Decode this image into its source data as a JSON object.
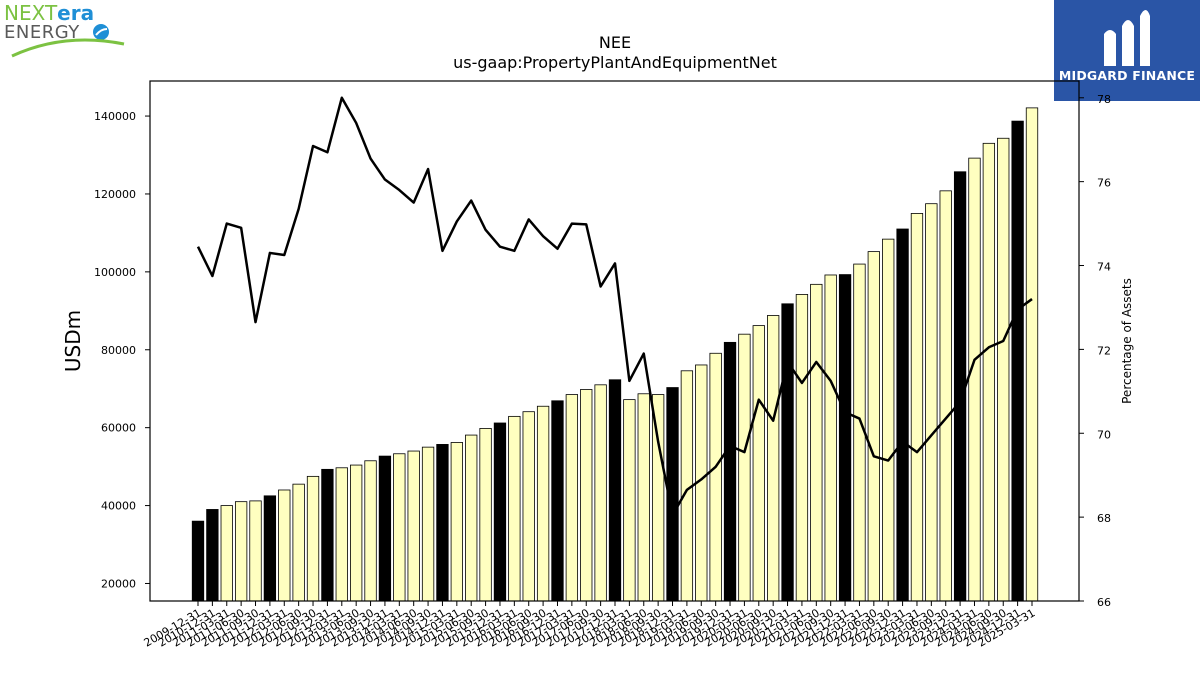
{
  "logos": {
    "left": {
      "word1": "NEXT",
      "word2": "era",
      "word3": "ENERGY",
      "colors": {
        "next": "#7cc242",
        "era": "#1f8fd6",
        "energy": "#5a5a5a",
        "swoosh": "#7cc242"
      }
    },
    "right": {
      "text": "MIDGARD FINANCE",
      "background": "#2a55a6"
    }
  },
  "chart_data": {
    "type": "bar",
    "title": "NEE",
    "subtitle": "us-gaap:PropertyPlantAndEquipmentNet",
    "ylabel": "USDm",
    "y2label": "Percentage of Assets",
    "ylim": [
      15500,
      149000
    ],
    "yticks": [
      20000,
      40000,
      60000,
      80000,
      100000,
      120000,
      140000
    ],
    "y2lim": [
      66,
      78.4
    ],
    "y2ticks": [
      66,
      68,
      70,
      72,
      74,
      76,
      78
    ],
    "colors": {
      "annual_bar": "#000000",
      "quarterly_bar": "#ffffc0",
      "bar_edge": "#000000",
      "line": "#000000"
    },
    "categories": [
      "2009-12-31",
      "2010-12-31",
      "2011-03-31",
      "2011-06-30",
      "2011-09-30",
      "2011-12-31",
      "2012-03-31",
      "2012-06-30",
      "2012-09-30",
      "2012-12-31",
      "2013-03-31",
      "2013-06-30",
      "2013-09-30",
      "2013-12-31",
      "2014-03-31",
      "2014-06-30",
      "2014-09-30",
      "2014-12-31",
      "2015-03-31",
      "2015-06-30",
      "2015-09-30",
      "2015-12-31",
      "2016-03-31",
      "2016-06-30",
      "2016-09-30",
      "2016-12-31",
      "2017-03-31",
      "2017-06-30",
      "2017-09-30",
      "2017-12-31",
      "2018-03-31",
      "2018-06-30",
      "2018-09-30",
      "2018-12-31",
      "2019-03-31",
      "2019-06-30",
      "2019-09-30",
      "2019-12-31",
      "2020-03-31",
      "2020-06-30",
      "2020-09-30",
      "2020-12-31",
      "2021-03-31",
      "2021-06-30",
      "2021-09-30",
      "2021-12-31",
      "2022-03-31",
      "2022-06-30",
      "2022-09-30",
      "2022-12-31",
      "2023-03-31",
      "2023-06-30",
      "2023-09-30",
      "2023-12-31",
      "2024-03-31",
      "2024-06-30",
      "2024-09-30",
      "2024-12-31",
      "2025-03-31"
    ],
    "series": [
      {
        "kind": "bar",
        "values": [
          36000,
          39000,
          40000,
          41000,
          41200,
          42500,
          44000,
          45500,
          47500,
          49300,
          49700,
          50400,
          51500,
          52700,
          53300,
          54000,
          55000,
          55700,
          56200,
          58100,
          59800,
          61200,
          62900,
          64100,
          65500,
          66900,
          68500,
          69800,
          71000,
          72300,
          67200,
          68700,
          68500,
          70300,
          74600,
          76100,
          79100,
          81900,
          84000,
          86200,
          88800,
          91800,
          94200,
          96800,
          99200,
          99300,
          102000,
          105200,
          108400,
          111000,
          115000,
          117500,
          120800,
          125700,
          129200,
          133000,
          134300,
          138700,
          142100
        ],
        "annual": [
          true,
          true,
          false,
          false,
          false,
          true,
          false,
          false,
          false,
          true,
          false,
          false,
          false,
          true,
          false,
          false,
          false,
          true,
          false,
          false,
          false,
          true,
          false,
          false,
          false,
          true,
          false,
          false,
          false,
          true,
          false,
          false,
          false,
          true,
          false,
          false,
          false,
          true,
          false,
          false,
          false,
          true,
          false,
          false,
          false,
          true,
          false,
          false,
          false,
          true,
          false,
          false,
          false,
          true,
          false,
          false,
          false,
          true,
          false
        ]
      },
      {
        "kind": "line",
        "axis": "right",
        "values": [
          74.45,
          73.75,
          75.0,
          74.9,
          72.65,
          74.3,
          74.25,
          75.35,
          76.85,
          76.7,
          78.0,
          77.4,
          76.55,
          76.05,
          75.8,
          75.5,
          76.3,
          74.35,
          75.05,
          75.55,
          74.85,
          74.45,
          74.35,
          75.1,
          74.7,
          74.4,
          75.0,
          74.98,
          73.5,
          74.05,
          71.25,
          71.9,
          69.8,
          68.05,
          68.65,
          68.9,
          69.2,
          69.7,
          69.55,
          70.8,
          70.3,
          71.7,
          71.2,
          71.7,
          71.25,
          70.5,
          70.35,
          69.45,
          69.35,
          69.8,
          69.55,
          69.95,
          70.35,
          70.75,
          71.75,
          72.05,
          72.2,
          72.95,
          73.2
        ]
      }
    ]
  }
}
